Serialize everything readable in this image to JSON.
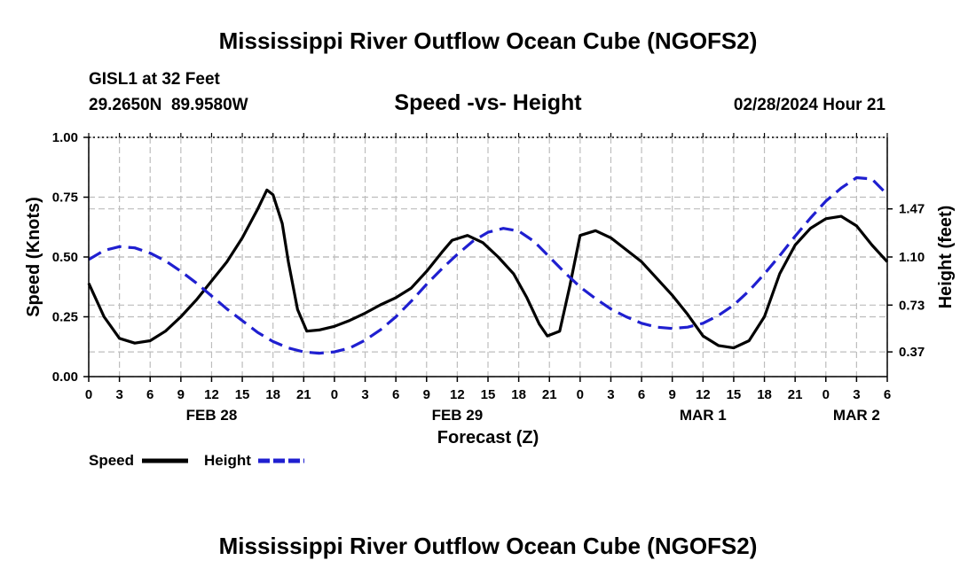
{
  "page": {
    "title": "Mississippi River Outflow Ocean Cube (NGOFS2)",
    "footer_title": "Mississippi River Outflow Ocean Cube (NGOFS2)"
  },
  "station": {
    "name": "GISL1 at 32 Feet",
    "coords": "29.2650N  89.9580W",
    "datetime": "02/28/2024 Hour 21"
  },
  "colors": {
    "speed": "#000000",
    "height": "#1f1fd0",
    "grid": "#bdbdbd"
  },
  "chart_data": {
    "type": "line",
    "title": "Speed -vs- Height",
    "xlabel": "Forecast (Z)",
    "ylabel": "Speed (Knots)",
    "y2label": "Height (feet)",
    "x_unit": "hours from Feb 28 00Z",
    "xlim": [
      0,
      78
    ],
    "ylim": [
      0,
      1
    ],
    "y2lim": [
      0.18,
      2.02
    ],
    "x_ticks": [
      0,
      3,
      6,
      9,
      12,
      15,
      18,
      21,
      24,
      27,
      30,
      33,
      36,
      39,
      42,
      45,
      48,
      51,
      54,
      57,
      60,
      63,
      66,
      69,
      72,
      75,
      78
    ],
    "x_tick_labels": [
      "0",
      "3",
      "6",
      "9",
      "12",
      "15",
      "18",
      "21",
      "0",
      "3",
      "6",
      "9",
      "12",
      "15",
      "18",
      "21",
      "0",
      "3",
      "6",
      "9",
      "12",
      "15",
      "18",
      "21",
      "0",
      "3",
      "6"
    ],
    "date_labels": [
      {
        "x": 12,
        "label": "FEB 28"
      },
      {
        "x": 36,
        "label": "FEB 29"
      },
      {
        "x": 60,
        "label": "MAR 1"
      },
      {
        "x": 75,
        "label": "MAR 2"
      }
    ],
    "y_ticks": [
      0.0,
      0.25,
      0.5,
      0.75,
      1.0
    ],
    "y_tick_labels": [
      "0.00",
      "0.25",
      "0.50",
      "0.75",
      "1.00"
    ],
    "y2_ticks": [
      0.37,
      0.73,
      1.1,
      1.47
    ],
    "y2_tick_labels": [
      "0.37",
      "0.73",
      "1.10",
      "1.47"
    ],
    "series": [
      {
        "name": "Speed",
        "axis": "left",
        "style": "solid",
        "x": [
          0,
          1.5,
          3,
          4.5,
          6,
          7.5,
          9,
          10.5,
          12,
          13.5,
          15,
          16.5,
          17.4,
          18,
          18.9,
          19.5,
          20.4,
          21.3,
          22.5,
          24,
          25.5,
          27,
          28.5,
          30,
          31.5,
          33,
          34.5,
          35.5,
          37,
          38.5,
          40,
          41.5,
          42.8,
          44,
          44.8,
          46,
          47,
          48,
          49.5,
          51,
          52.5,
          54,
          55.5,
          57,
          58.5,
          60,
          61.5,
          63,
          64.5,
          66,
          67.5,
          69,
          70.5,
          72,
          73.5,
          75,
          76.5,
          78
        ],
        "values": [
          0.39,
          0.25,
          0.16,
          0.14,
          0.15,
          0.19,
          0.25,
          0.32,
          0.4,
          0.48,
          0.58,
          0.7,
          0.78,
          0.76,
          0.64,
          0.48,
          0.28,
          0.19,
          0.195,
          0.21,
          0.235,
          0.265,
          0.3,
          0.33,
          0.37,
          0.44,
          0.52,
          0.57,
          0.59,
          0.56,
          0.5,
          0.43,
          0.33,
          0.22,
          0.17,
          0.19,
          0.38,
          0.59,
          0.61,
          0.58,
          0.53,
          0.48,
          0.41,
          0.34,
          0.26,
          0.17,
          0.13,
          0.12,
          0.15,
          0.25,
          0.43,
          0.55,
          0.62,
          0.66,
          0.67,
          0.63,
          0.55,
          0.48
        ]
      },
      {
        "name": "Height",
        "axis": "right",
        "style": "dashed",
        "x": [
          0,
          1.5,
          3,
          4.5,
          6,
          7.5,
          9,
          10.5,
          12,
          13.5,
          15,
          16.5,
          18,
          19.5,
          21,
          22.5,
          24,
          25.5,
          27,
          28.5,
          30,
          31.5,
          33,
          34.5,
          36,
          37.5,
          39,
          40.5,
          42,
          43.5,
          45,
          46.5,
          48,
          49.5,
          51,
          52.5,
          54,
          55.5,
          57,
          58.5,
          60,
          61.5,
          63,
          64.5,
          66,
          67.5,
          69,
          70.5,
          72,
          73.5,
          75,
          76.5,
          78
        ],
        "values": [
          1.08,
          1.15,
          1.18,
          1.17,
          1.13,
          1.07,
          0.99,
          0.9,
          0.8,
          0.7,
          0.61,
          0.52,
          0.45,
          0.4,
          0.37,
          0.36,
          0.37,
          0.4,
          0.46,
          0.54,
          0.64,
          0.76,
          0.89,
          1.01,
          1.12,
          1.22,
          1.29,
          1.32,
          1.3,
          1.22,
          1.1,
          0.98,
          0.87,
          0.78,
          0.7,
          0.64,
          0.59,
          0.56,
          0.55,
          0.56,
          0.59,
          0.65,
          0.73,
          0.84,
          0.97,
          1.11,
          1.26,
          1.4,
          1.53,
          1.63,
          1.71,
          1.7,
          1.58
        ]
      }
    ],
    "legend": {
      "placement": "bottom-left",
      "entries": [
        {
          "label": "Speed",
          "style": "solid"
        },
        {
          "label": "Height",
          "style": "dashed"
        }
      ]
    },
    "grid": true
  }
}
